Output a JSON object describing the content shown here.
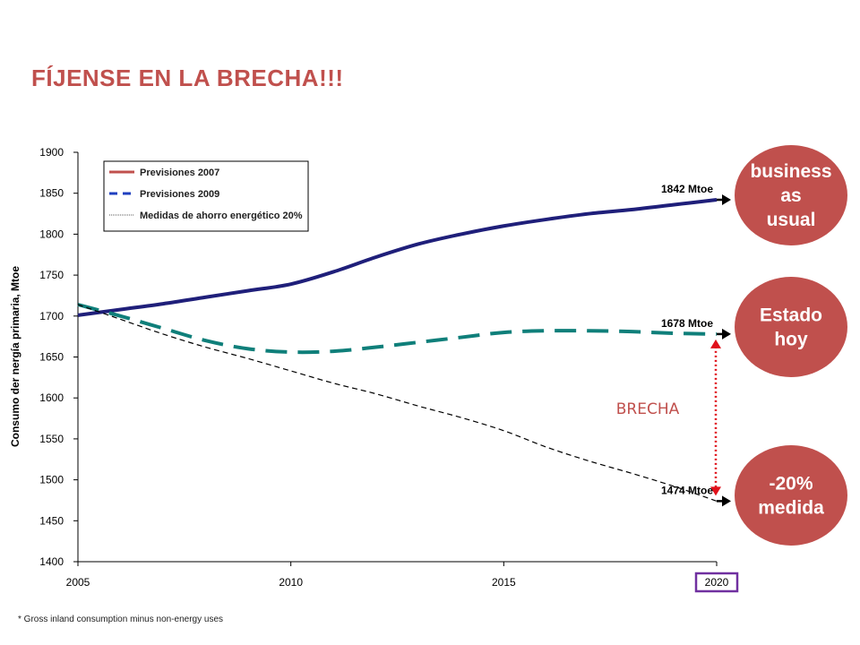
{
  "title": "FÍJENSE EN LA BRECHA!!!",
  "footnote": "* Gross inland consumption minus non-energy uses",
  "colors": {
    "title": "#c0504d",
    "series_2007": "#1f1f7a",
    "series_2009": "#0f7f7a",
    "series_measures": "#000000",
    "circle_fill": "#c0504d",
    "arrow": "#e0101a",
    "highlight_box": "#7030a0"
  },
  "chart_data": {
    "type": "line",
    "ylabel": "Consumo der nergía primaria, Mtoe",
    "xlim": [
      2005,
      2020
    ],
    "ylim": [
      1400,
      1900
    ],
    "x_ticks": [
      "2005",
      "2010",
      "2015",
      "2020"
    ],
    "y_ticks": [
      "1400",
      "1450",
      "1500",
      "1550",
      "1600",
      "1650",
      "1700",
      "1750",
      "1800",
      "1850",
      "1900"
    ],
    "highlighted_tick": "2020",
    "legend": {
      "position": "top-left"
    },
    "series": [
      {
        "name": "Previsiones 2007",
        "style": "solid",
        "x": [
          2005,
          2006,
          2007,
          2008,
          2009,
          2010,
          2011,
          2012,
          2013,
          2014,
          2015,
          2016,
          2017,
          2018,
          2019,
          2020
        ],
        "y": [
          1701,
          1708,
          1715,
          1723,
          1731,
          1739,
          1754,
          1772,
          1788,
          1800,
          1810,
          1818,
          1825,
          1830,
          1836,
          1842
        ]
      },
      {
        "name": "Previsiones 2009",
        "style": "dashed",
        "x": [
          2005,
          2006,
          2007,
          2008,
          2009,
          2010,
          2011,
          2012,
          2013,
          2014,
          2015,
          2016,
          2017,
          2018,
          2019,
          2020
        ],
        "y": [
          1714,
          1700,
          1685,
          1670,
          1660,
          1656,
          1657,
          1662,
          1668,
          1674,
          1680,
          1682,
          1682,
          1681,
          1679,
          1678
        ]
      },
      {
        "name": "Medidas de ahorro energético 20%",
        "style": "dotted",
        "x": [
          2005,
          2006,
          2007,
          2008,
          2009,
          2010,
          2011,
          2012,
          2013,
          2014,
          2015,
          2016,
          2017,
          2018,
          2019,
          2020
        ],
        "y": [
          1714,
          1696,
          1678,
          1662,
          1648,
          1633,
          1618,
          1605,
          1590,
          1576,
          1560,
          1540,
          1523,
          1508,
          1492,
          1474
        ]
      }
    ],
    "end_labels": [
      "1842 Mtoe",
      "1678 Mtoe",
      "1474 Mtoe"
    ],
    "gap_label": "BRECHA",
    "gap_range": [
      1474,
      1678
    ],
    "scenario_labels": [
      {
        "lines": [
          "business",
          "as",
          "usual"
        ]
      },
      {
        "lines": [
          "Estado",
          "hoy"
        ]
      },
      {
        "lines": [
          "-20%",
          "medida"
        ]
      }
    ]
  }
}
